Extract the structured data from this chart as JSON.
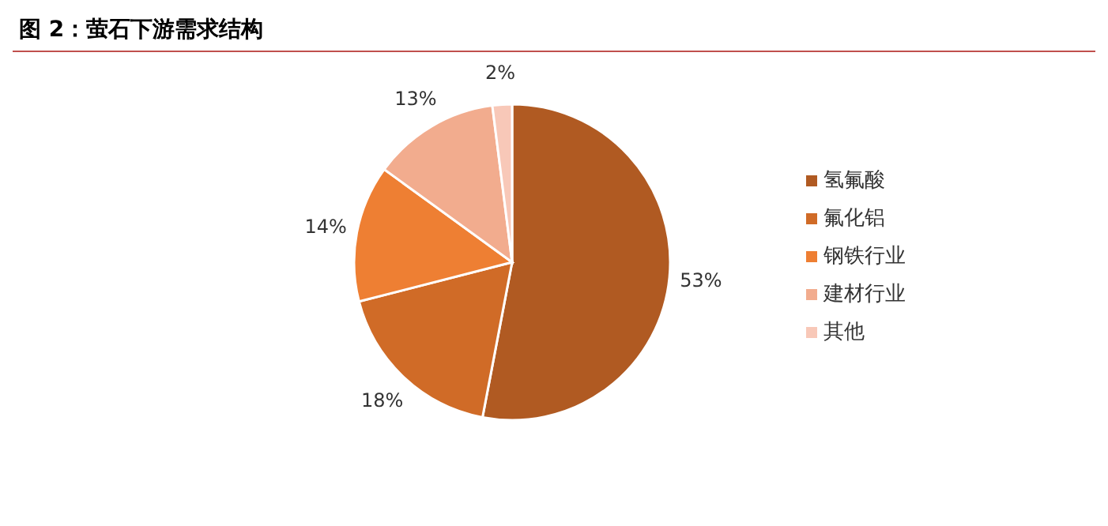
{
  "chart_data": {
    "type": "pie",
    "title": "图 2：萤石下游需求结构",
    "categories": [
      "氢氟酸",
      "氟化铝",
      "钢铁行业",
      "建材行业",
      "其他"
    ],
    "values": [
      53,
      18,
      14,
      13,
      2
    ],
    "value_labels": [
      "53%",
      "18%",
      "14%",
      "13%",
      "2%"
    ],
    "colors": [
      "#b05a22",
      "#d06b27",
      "#ee7f33",
      "#f2ac8e",
      "#f8c8b8"
    ],
    "legend": "right"
  }
}
